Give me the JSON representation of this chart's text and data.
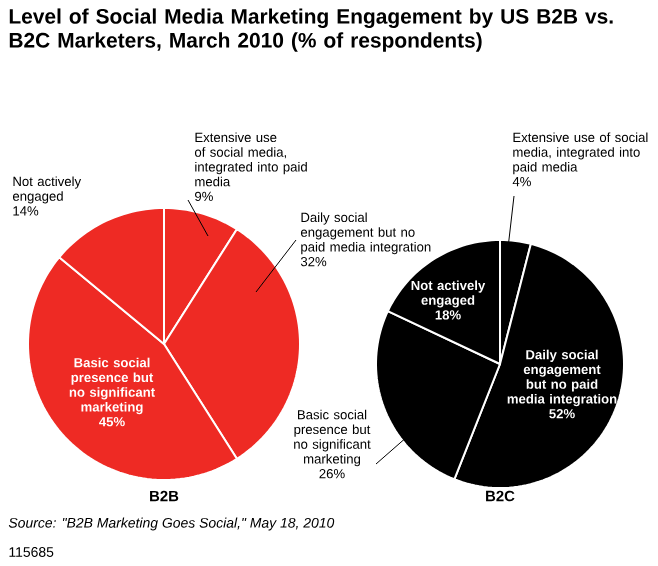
{
  "chart_data": [
    {
      "type": "pie",
      "title": "Level of Social Media Marketing Engagement by US B2B vs. B2C Marketers, March 2010 (% of respondents)",
      "xlabel": "B2B",
      "categories": [
        "Extensive use of social media, integrated into paid media",
        "Daily social engagement but no paid media integration",
        "Basic social presence but no significant marketing",
        "Not actively engaged"
      ],
      "values": [
        9,
        32,
        45,
        14
      ],
      "value_labels": [
        "9%",
        "32%",
        "45%",
        "14%"
      ],
      "colors": [
        "#ee2a24",
        "#ee2a24",
        "#ee2a24",
        "#ee2a24"
      ]
    },
    {
      "type": "pie",
      "xlabel": "B2C",
      "categories": [
        "Extensive use of social media, integrated into paid media",
        "Daily social engagement but no paid media integration",
        "Basic social presence but no significant marketing",
        "Not actively engaged"
      ],
      "values": [
        4,
        52,
        26,
        18
      ],
      "value_labels": [
        "4%",
        "52%",
        "26%",
        "18%"
      ],
      "colors": [
        "#000000",
        "#000000",
        "#000000",
        "#000000"
      ],
      "annotations": [
        "Source: \"B2B Marketing Goes Social,\" May 18, 2010",
        "115685"
      ]
    }
  ]
}
